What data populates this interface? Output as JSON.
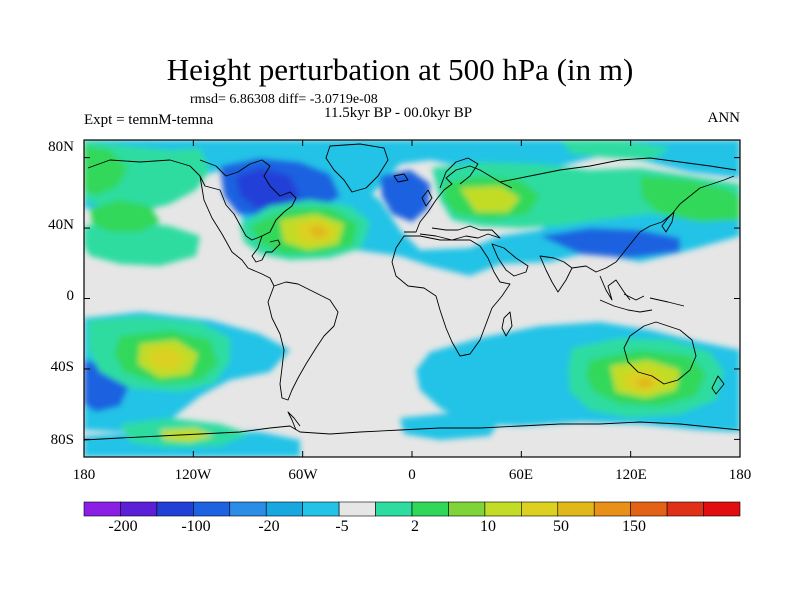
{
  "title": "Height perturbation at 500 hPa (in m)",
  "stats": "rmsd= 6.86308 diff= -3.0719e-08",
  "period": "11.5kyr BP - 00.0kyr BP",
  "experiment": "Expt = temnM-temna",
  "season": "ANN",
  "map": {
    "projection": "cylindrical equidistant",
    "lon_range": [
      -180,
      180
    ],
    "lat_range": [
      -90,
      90
    ],
    "lat_labels": [
      "80N",
      "40N",
      "0",
      "40S",
      "80S"
    ],
    "lon_labels": [
      "180",
      "120W",
      "60W",
      "0",
      "60E",
      "120E",
      "180"
    ]
  },
  "colorbar": {
    "labels": [
      "-200",
      "-100",
      "-20",
      "-5",
      "2",
      "10",
      "50",
      "150"
    ],
    "colors": [
      "#8c1fe6",
      "#5a1fd6",
      "#2040d8",
      "#1d62e0",
      "#2c8de6",
      "#19a7e0",
      "#24c3e6",
      "#e6e6e6",
      "#2fdca0",
      "#30d85a",
      "#7fd43a",
      "#c2dc28",
      "#dcd020",
      "#e0b81a",
      "#e89018",
      "#e46216",
      "#e03018",
      "#e00e10"
    ]
  },
  "field_colors": {
    "neutral": "#e6e6e6",
    "light_blue": "#24c3e6",
    "mid_blue": "#1d62e0",
    "deep_blue": "#2040d8",
    "teal": "#2fdca0",
    "green": "#30d85a",
    "yellow_green": "#c2dc28",
    "yellow": "#dcd020",
    "orange": "#e0b81a"
  }
}
